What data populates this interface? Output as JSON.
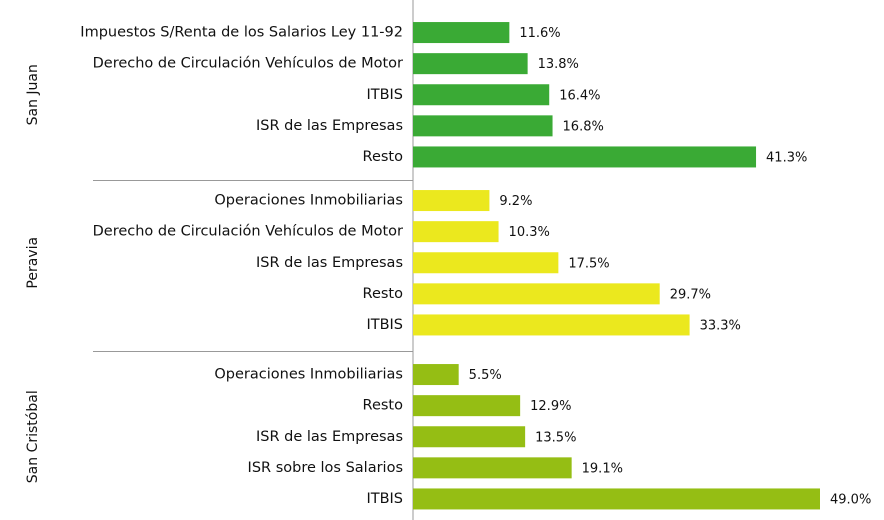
{
  "chart_data": {
    "type": "bar",
    "groups": [
      {
        "name": "San Juan",
        "color": "#3aaa35",
        "categories": [
          "Impuestos S/Renta de los Salarios Ley 11-92",
          "Derecho de Circulación Vehículos de Motor",
          "ITBIS",
          "ISR de las Empresas",
          "Resto"
        ],
        "values": [
          11.6,
          13.8,
          16.4,
          16.8,
          41.3
        ],
        "value_labels": [
          "11.6%",
          "13.8%",
          "16.4%",
          "16.8%",
          "41.3%"
        ]
      },
      {
        "name": "Peravia",
        "color": "#ebe81e",
        "categories": [
          "Operaciones Inmobiliarias",
          "Derecho de Circulación Vehículos de Motor",
          "ISR de las Empresas",
          "Resto",
          "ITBIS"
        ],
        "values": [
          9.2,
          10.3,
          17.5,
          29.7,
          33.3
        ],
        "value_labels": [
          "9.2%",
          "10.3%",
          "17.5%",
          "29.7%",
          "33.3%"
        ]
      },
      {
        "name": "San Cristóbal",
        "color": "#95be14",
        "categories": [
          "Operaciones Inmobiliarias",
          "Resto",
          "ISR de las Empresas",
          "ISR sobre los Salarios",
          "ITBIS"
        ],
        "values": [
          5.5,
          12.9,
          13.5,
          19.1,
          49.0
        ],
        "value_labels": [
          "5.5%",
          "12.9%",
          "13.5%",
          "19.1%",
          "49.0%"
        ]
      }
    ]
  }
}
